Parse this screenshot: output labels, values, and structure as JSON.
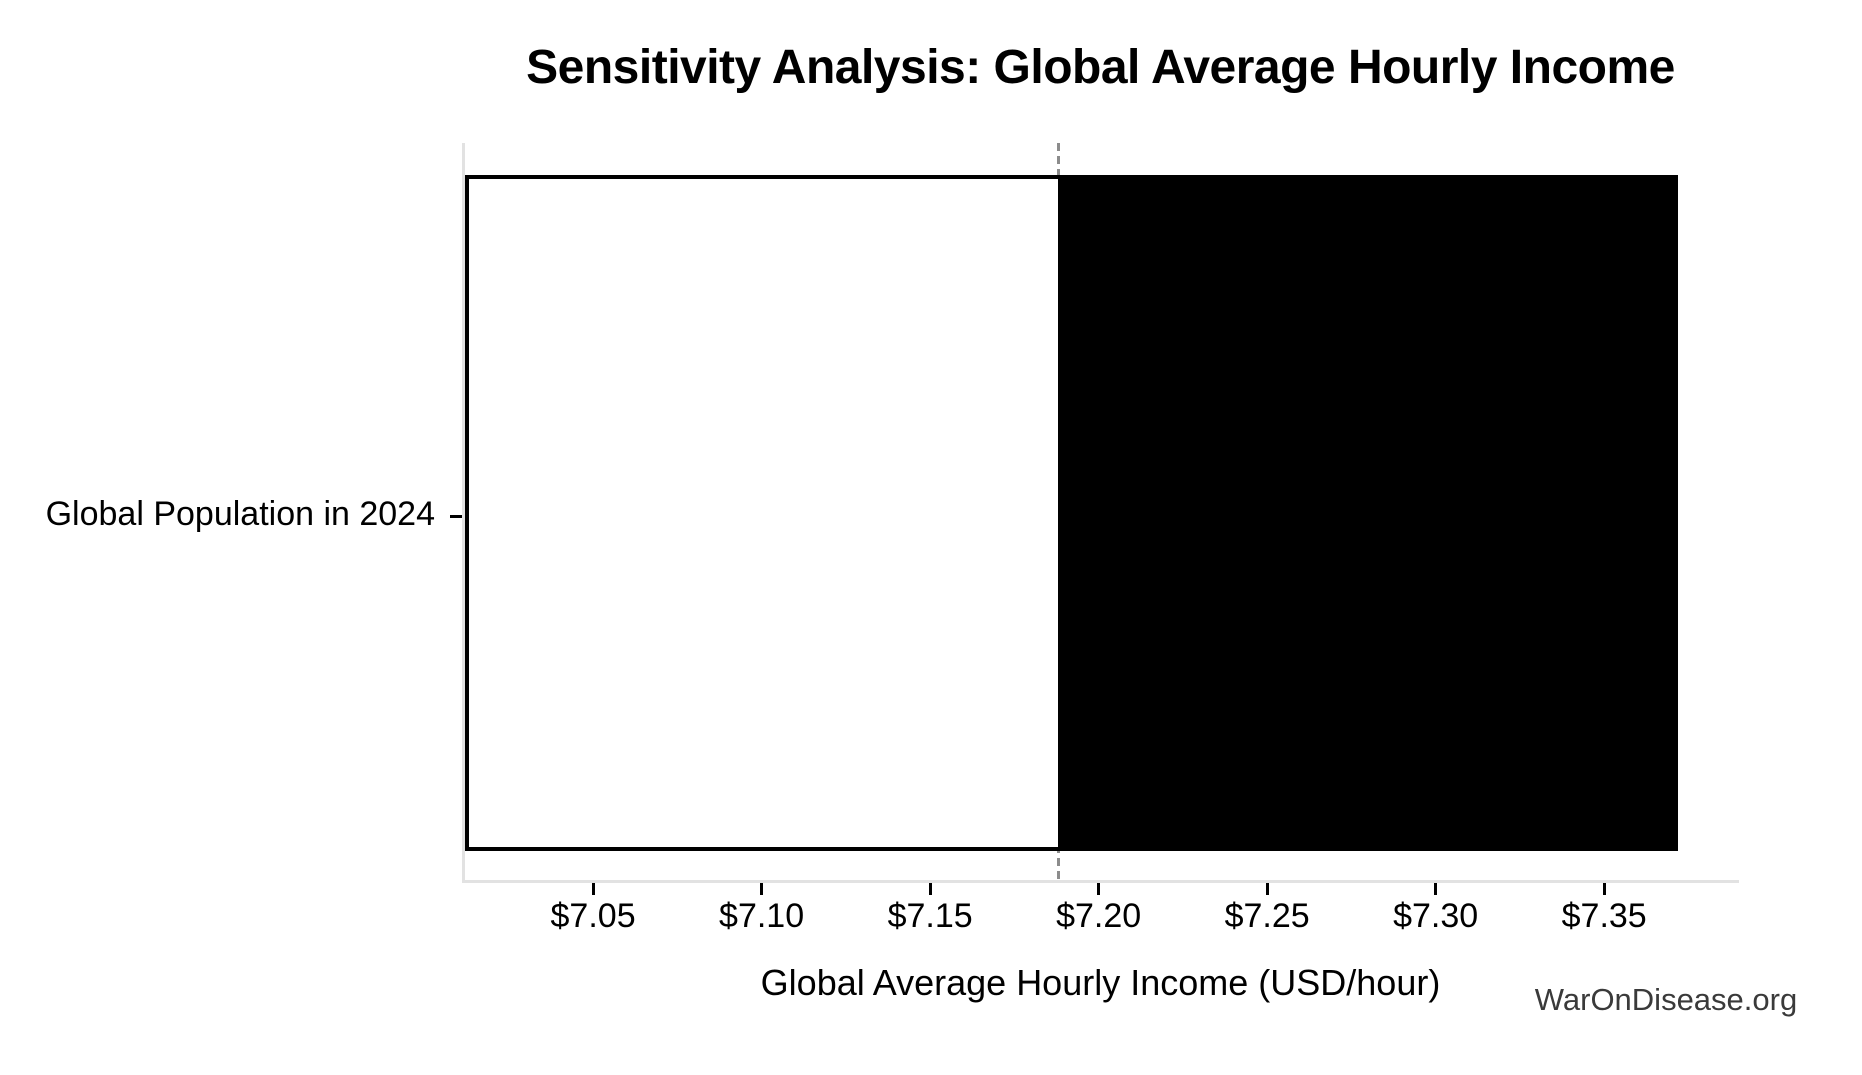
{
  "chart_data": {
    "type": "bar",
    "subtype": "tornado-sensitivity",
    "orientation": "horizontal",
    "title": "Sensitivity Analysis: Global Average Hourly Income",
    "xlabel": "Global Average Hourly Income (USD/hour)",
    "categories": [
      "Global Population in 2024"
    ],
    "series": [
      {
        "name": "Global Population in 2024",
        "low": 7.012,
        "base": 7.188,
        "high": 7.372
      }
    ],
    "baseline": {
      "value": 7.188,
      "style": "dashed"
    },
    "xlim": [
      7.012,
      7.39
    ],
    "xticks": [
      {
        "value": 7.05,
        "label": "$7.05"
      },
      {
        "value": 7.1,
        "label": "$7.10"
      },
      {
        "value": 7.15,
        "label": "$7.15"
      },
      {
        "value": 7.2,
        "label": "$7.20"
      },
      {
        "value": 7.25,
        "label": "$7.25"
      },
      {
        "value": 7.3,
        "label": "$7.30"
      },
      {
        "value": 7.35,
        "label": "$7.35"
      }
    ],
    "grid": false,
    "legend": "none",
    "watermark": "WarOnDisease.org"
  },
  "colors": {
    "low_segment": "#ffffff",
    "high_segment": "#000000",
    "bar_edge": "#000000",
    "baseline": "#8c8c8c",
    "spine": "#e2e2e2",
    "tick": "#000000",
    "text": "#000000",
    "watermark": "#3a3a3a"
  }
}
